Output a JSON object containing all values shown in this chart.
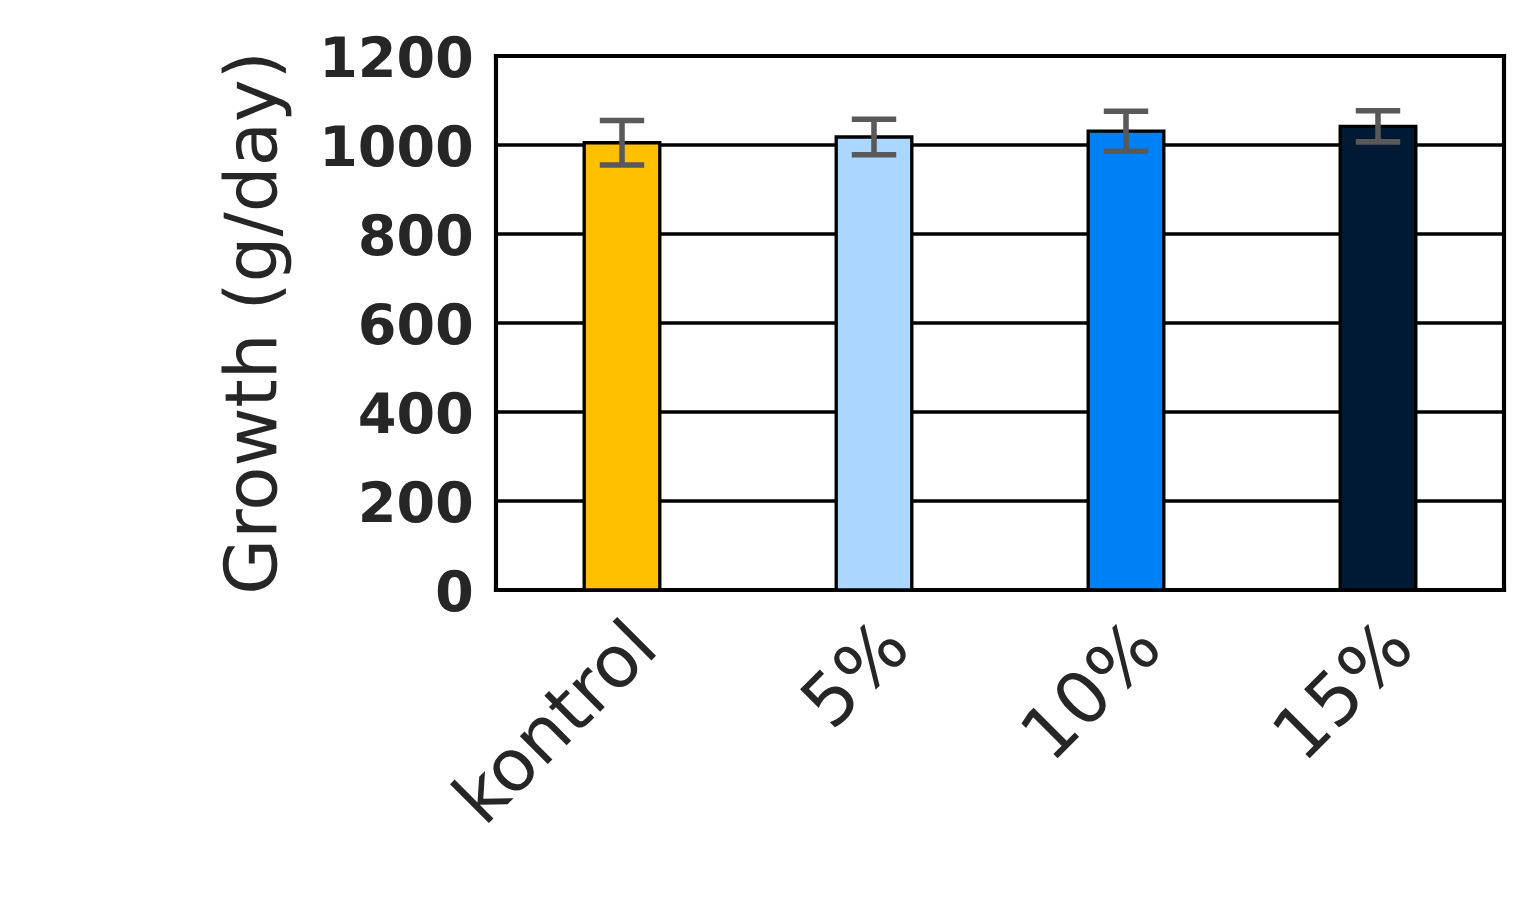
{
  "chart_data": {
    "type": "bar",
    "ylabel": "Growth (g/day)",
    "categories": [
      "kontrol",
      "5%",
      "10%",
      "15%"
    ],
    "values": [
      1005,
      1018,
      1031,
      1042
    ],
    "errors": [
      50,
      40,
      45,
      35
    ],
    "colors": [
      "#ffc000",
      "#abd7ff",
      "#0080f5",
      "#001a33"
    ],
    "ylim": [
      0,
      1200
    ],
    "yticks": [
      0,
      200,
      400,
      600,
      800,
      1000,
      1200
    ],
    "grid": "y"
  }
}
